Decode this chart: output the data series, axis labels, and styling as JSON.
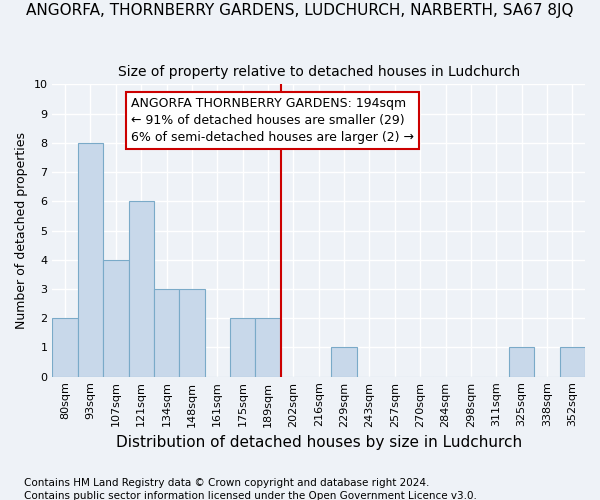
{
  "title": "ANGORFA, THORNBERRY GARDENS, LUDCHURCH, NARBERTH, SA67 8JQ",
  "subtitle": "Size of property relative to detached houses in Ludchurch",
  "xlabel": "Distribution of detached houses by size in Ludchurch",
  "ylabel": "Number of detached properties",
  "categories": [
    "80sqm",
    "93sqm",
    "107sqm",
    "121sqm",
    "134sqm",
    "148sqm",
    "161sqm",
    "175sqm",
    "189sqm",
    "202sqm",
    "216sqm",
    "229sqm",
    "243sqm",
    "257sqm",
    "270sqm",
    "284sqm",
    "298sqm",
    "311sqm",
    "325sqm",
    "338sqm",
    "352sqm"
  ],
  "values": [
    2,
    8,
    4,
    6,
    3,
    3,
    0,
    2,
    2,
    0,
    0,
    1,
    0,
    0,
    0,
    0,
    0,
    0,
    1,
    0,
    1
  ],
  "bar_color": "#c8d8ea",
  "bar_edge_color": "#7aaac8",
  "vline_x": 8.5,
  "vline_color": "#cc0000",
  "ylim": [
    0,
    10
  ],
  "yticks": [
    0,
    1,
    2,
    3,
    4,
    5,
    6,
    7,
    8,
    9,
    10
  ],
  "annotation_text": "ANGORFA THORNBERRY GARDENS: 194sqm\n← 91% of detached houses are smaller (29)\n6% of semi-detached houses are larger (2) →",
  "annotation_box_color": "#cc0000",
  "footer_line1": "Contains HM Land Registry data © Crown copyright and database right 2024.",
  "footer_line2": "Contains public sector information licensed under the Open Government Licence v3.0.",
  "background_color": "#eef2f7",
  "grid_color": "#ffffff",
  "title_fontsize": 11,
  "subtitle_fontsize": 10,
  "ylabel_fontsize": 9,
  "xlabel_fontsize": 11,
  "tick_fontsize": 8,
  "annotation_fontsize": 9,
  "footer_fontsize": 7.5
}
